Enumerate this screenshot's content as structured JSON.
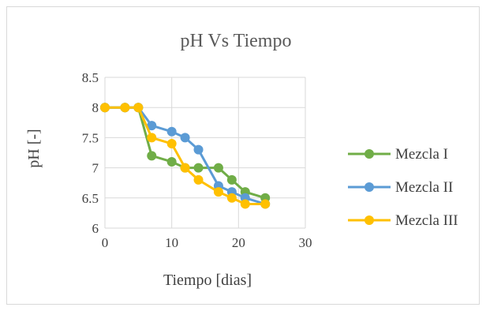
{
  "chart_data": {
    "type": "line",
    "title": "pH Vs Tiempo",
    "xlabel": "Tiempo [dias]",
    "ylabel": "pH [-]",
    "xlim": [
      0,
      30
    ],
    "ylim": [
      6,
      8.5
    ],
    "xticks": [
      0,
      10,
      20,
      30
    ],
    "yticks": [
      6,
      6.5,
      7,
      7.5,
      8,
      8.5
    ],
    "xtick_labels": [
      "0",
      "10",
      "20",
      "30"
    ],
    "ytick_labels": [
      "6",
      "6.5",
      "7",
      "7.5",
      "8",
      "8.5"
    ],
    "grid": true,
    "legend_position": "right",
    "series": [
      {
        "name": "Mezcla I",
        "color": "#70ad47",
        "x": [
          0,
          3,
          5,
          7,
          10,
          12,
          14,
          17,
          19,
          21,
          24
        ],
        "y": [
          8,
          8,
          8,
          7.2,
          7.1,
          7.0,
          7.0,
          7.0,
          6.8,
          6.6,
          6.5
        ]
      },
      {
        "name": "Mezcla II",
        "color": "#5b9bd5",
        "x": [
          0,
          3,
          5,
          7,
          10,
          12,
          14,
          17,
          19,
          21,
          24
        ],
        "y": [
          8,
          8,
          8,
          7.7,
          7.6,
          7.5,
          7.3,
          6.7,
          6.6,
          6.5,
          6.4
        ]
      },
      {
        "name": "Mezcla III",
        "color": "#ffc000",
        "x": [
          0,
          3,
          5,
          7,
          10,
          12,
          14,
          17,
          19,
          21,
          24
        ],
        "y": [
          8,
          8,
          8,
          7.5,
          7.4,
          7.0,
          6.8,
          6.6,
          6.5,
          6.4,
          6.4
        ]
      }
    ]
  }
}
